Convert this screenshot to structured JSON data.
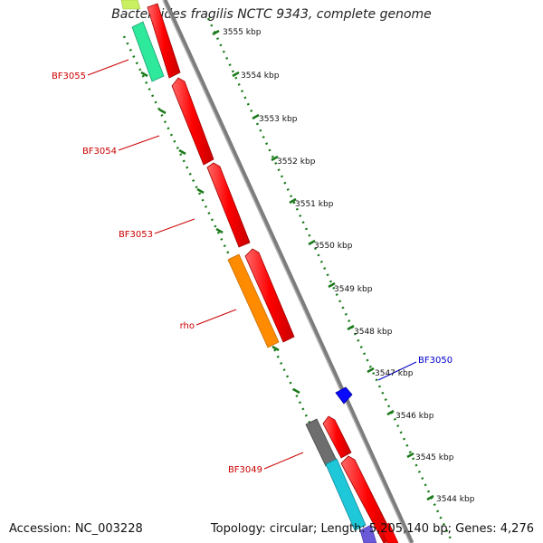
{
  "title": "Bacteroides fragilis NCTC 9343, complete genome",
  "footer": {
    "accession": "Accession: NC_003228",
    "summary": "Topology: circular; Length: 5,205,140 bp; Genes: 4,276"
  },
  "colors": {
    "backbone": "#8a8a8a",
    "ruler": "#1a7a1a",
    "forward_gene": "#ff0000",
    "label_red": "#cc0000",
    "label_blue": "#0000cc"
  },
  "ruler_labels": [
    "3555 kbp",
    "3554 kbp",
    "3553 kbp",
    "3552 kbp",
    "3551 kbp",
    "3550 kbp",
    "3549 kbp",
    "3548 kbp",
    "3547 kbp",
    "3546 kbp",
    "3545 kbp",
    "3544 kbp"
  ],
  "gene_labels": [
    {
      "name": "BF3055",
      "color": "#cc0000"
    },
    {
      "name": "BF3054",
      "color": "#cc0000"
    },
    {
      "name": "BF3053",
      "color": "#cc0000"
    },
    {
      "name": "rho",
      "color": "#cc0000"
    },
    {
      "name": "BF3050",
      "color": "#0000cc"
    },
    {
      "name": "BF3049",
      "color": "#cc0000"
    }
  ]
}
